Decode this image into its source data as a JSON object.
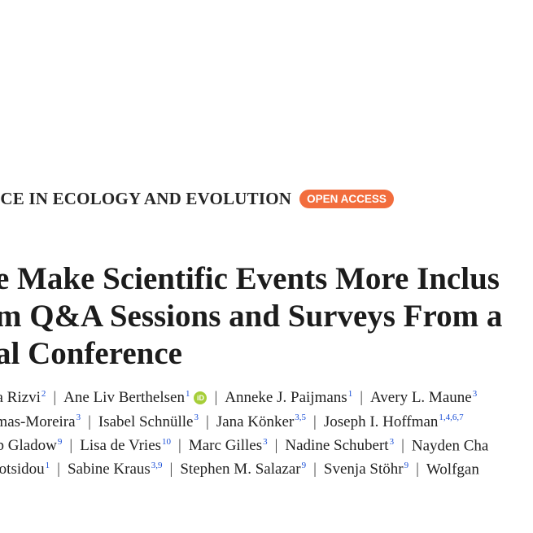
{
  "section": {
    "label": "ICE IN ECOLOGY AND EVOLUTION",
    "badge": "OPEN ACCESS"
  },
  "title_lines": [
    "e Make Scientific Events More Inclus",
    "m Q&A Sessions and Surveys From a",
    "al Conference"
  ],
  "orcid_label": "iD",
  "separator": "|",
  "authors": {
    "line1": [
      {
        "name": "ba Rizvi",
        "sup": "2"
      },
      {
        "name": "Ane Liv Berthelsen",
        "sup": "1"
      },
      {
        "name": "Anneke J. Paijmans",
        "sup": "1"
      },
      {
        "name": "Avery L. Maune",
        "sup": "3"
      }
    ],
    "line2": [
      {
        "name": "amas-Moreira",
        "sup": "3"
      },
      {
        "name": "Isabel Schnülle",
        "sup": "3"
      },
      {
        "name": "Jana Könker",
        "sup": "3,5"
      },
      {
        "name": "Joseph I. Hoffman",
        "sup": "1,4,6,7"
      }
    ],
    "line3": [
      {
        "name": "op Gladow",
        "sup": "9"
      },
      {
        "name": "Lisa de Vries",
        "sup": "10"
      },
      {
        "name": "Marc Gilles",
        "sup": "3"
      },
      {
        "name": "Nadine Schubert",
        "sup": "3"
      },
      {
        "name": "Nayden Cha",
        "sup": ""
      }
    ],
    "line4": [
      {
        "name": "Botsidou",
        "sup": "1"
      },
      {
        "name": "Sabine Kraus",
        "sup": "3,9"
      },
      {
        "name": "Stephen M. Salazar",
        "sup": "9"
      },
      {
        "name": "Svenja Stöhr",
        "sup": "9"
      },
      {
        "name": "Wolfgan",
        "sup": ""
      }
    ]
  },
  "colors": {
    "badge": "#f26d3d",
    "orcid": "#a6ce39",
    "affiliation_link": "#1a4fd6"
  }
}
